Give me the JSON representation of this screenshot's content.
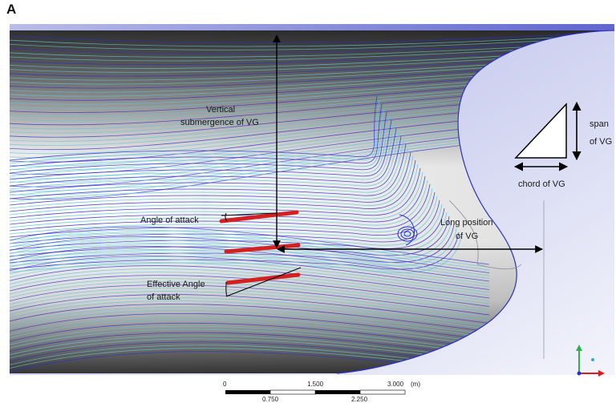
{
  "panel_label": "A",
  "annotations": {
    "vertical_submergence": [
      "Vertical",
      "submergence of VG"
    ],
    "angle_of_attack": "Angle of attack",
    "effective_angle": [
      "Effective Angle",
      "of attack"
    ],
    "long_position": [
      "Long position",
      "of VG"
    ],
    "span": [
      "span",
      "of VG"
    ],
    "chord": "chord of VG"
  },
  "scale_bar": {
    "top_labels": [
      "0",
      "1.500",
      "3.000"
    ],
    "bottom_labels": [
      "0.750",
      "2.250"
    ],
    "unit": "(m)"
  },
  "colors": {
    "background_blue": "#8f98dc",
    "streamline_blue": "#2a2fd0",
    "streamline_cyan": "#5fc6d8",
    "vg_red": "#d42020",
    "hull_dark": "#3a3a3a"
  },
  "triad_icon": "axis-triad-icon"
}
